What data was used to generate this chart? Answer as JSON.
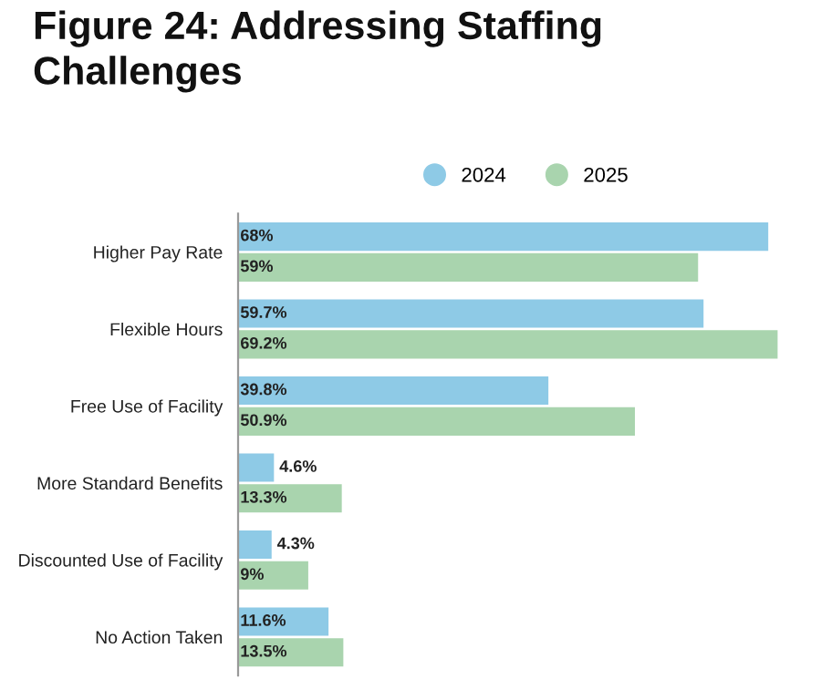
{
  "chart_data": {
    "type": "bar",
    "orientation": "horizontal",
    "title": "Figure 24: Addressing Staffing\nChallenges",
    "categories": [
      "Higher Pay Rate",
      "Flexible Hours",
      "Free Use of Facility",
      "More Standard Benefits",
      "Discounted Use of Facility",
      "No Action Taken"
    ],
    "series": [
      {
        "name": "2024",
        "color": "#8ecae6",
        "values": [
          68,
          59.7,
          39.8,
          4.6,
          4.3,
          11.6
        ],
        "value_labels": [
          "68%",
          "59.7%",
          "39.8%",
          "4.6%",
          "4.3%",
          "11.6%"
        ]
      },
      {
        "name": "2025",
        "color": "#a9d4ae",
        "values": [
          59,
          69.2,
          50.9,
          13.3,
          9,
          13.5
        ],
        "value_labels": [
          "59%",
          "69.2%",
          "50.9%",
          "13.3%",
          "9%",
          "13.5%"
        ]
      }
    ],
    "tick_labels": "y",
    "legend": "top",
    "grid": false
  }
}
